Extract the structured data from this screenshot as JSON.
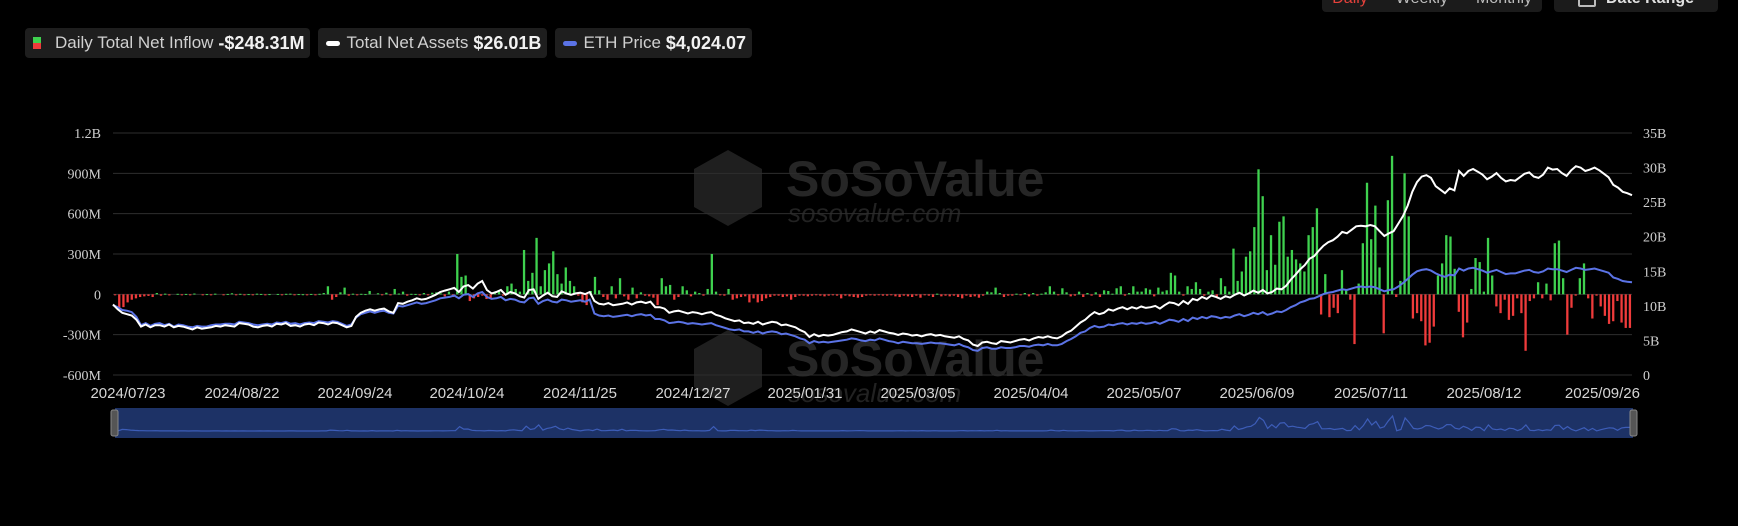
{
  "period_tabs": [
    {
      "label": "Daily",
      "active": true
    },
    {
      "label": "Weekly",
      "active": false
    },
    {
      "label": "Monthly",
      "active": false
    }
  ],
  "date_range_label": "Date Range",
  "legend": {
    "inflow": {
      "label": "Daily Total Net Inflow",
      "value": "-$248.31M"
    },
    "assets": {
      "label": "Total Net Assets",
      "value": "$26.01B"
    },
    "eth": {
      "label": "ETH Price",
      "value": "$4,024.07"
    }
  },
  "colors": {
    "positive": "#3fd14f",
    "negative": "#ef3b3b",
    "assets_line": "#ffffff",
    "eth_line": "#5b73e6",
    "grid": "#2e2e2e",
    "navigator": "#1d3266"
  },
  "watermark": {
    "brand": "SoSoValue",
    "site": "sosovalue.com"
  },
  "chart_data": {
    "type": "bar",
    "x_labels": [
      "2024/07/23",
      "2024/08/22",
      "2024/09/24",
      "2024/10/24",
      "2024/11/25",
      "2024/12/27",
      "2025/01/31",
      "2025/03/05",
      "2025/04/04",
      "2025/05/07",
      "2025/06/09",
      "2025/07/11",
      "2025/08/12",
      "2025/09/26"
    ],
    "y_left": {
      "ticks": [
        "1.2B",
        "900M",
        "600M",
        "300M",
        "0",
        "-300M",
        "-600M"
      ],
      "range": [
        -600,
        1200
      ],
      "unit": "M"
    },
    "y_right": {
      "ticks": [
        "35B",
        "30B",
        "25B",
        "20B",
        "15B",
        "10B",
        "5B",
        "0"
      ],
      "range": [
        0,
        35
      ],
      "unit": "B"
    },
    "series": [
      {
        "name": "Daily Total Net Inflow",
        "kind": "bar",
        "unit": "M",
        "values": [
          -5,
          -110,
          -95,
          -60,
          -40,
          -30,
          -20,
          -15,
          -12,
          -20,
          10,
          -10,
          5,
          -8,
          0,
          4,
          -5,
          3,
          -4,
          6,
          0,
          -3,
          2,
          -5,
          5,
          0,
          -6,
          3,
          8,
          -2,
          4,
          -3,
          2,
          -2,
          5,
          3,
          -4,
          2,
          0,
          3,
          -2,
          4,
          5,
          -3,
          2,
          1,
          -1,
          3,
          -2,
          4,
          10,
          60,
          -40,
          -20,
          15,
          50,
          -10,
          5,
          -3,
          4,
          2,
          25,
          0,
          8,
          -5,
          12,
          -2,
          40,
          6,
          20,
          -10,
          4,
          3,
          -6,
          10,
          -4,
          12,
          15,
          8,
          -15,
          20,
          -20,
          300,
          130,
          140,
          -50,
          -30,
          -20,
          -10,
          -35,
          -30,
          10,
          30,
          -10,
          60,
          80,
          40,
          20,
          330,
          100,
          160,
          420,
          60,
          180,
          230,
          320,
          150,
          80,
          200,
          100,
          60,
          -10,
          -60,
          -80,
          25,
          130,
          30,
          -20,
          -40,
          60,
          -30,
          120,
          -15,
          -40,
          50,
          -30,
          15,
          -10,
          -15,
          -25,
          -80,
          120,
          60,
          70,
          -40,
          -20,
          60,
          30,
          -15,
          20,
          10,
          -10,
          40,
          300,
          20,
          -5,
          -10,
          40,
          -40,
          -30,
          -20,
          -15,
          -60,
          -30,
          -60,
          -50,
          -30,
          -20,
          -10,
          -10,
          -20,
          -15,
          -40,
          -20,
          -10,
          -10,
          -15,
          -10,
          -5,
          -10,
          -15,
          -10,
          -5,
          -10,
          -30,
          -10,
          -15,
          -20,
          -25,
          -20,
          -10,
          -5,
          -10,
          -5,
          -10,
          -10,
          -5,
          -15,
          -20,
          -10,
          -15,
          -20,
          -10,
          -25,
          -5,
          -10,
          -20,
          5,
          -15,
          -10,
          -15,
          -10,
          -20,
          -30,
          -10,
          -20,
          -15,
          -25,
          -10,
          20,
          15,
          50,
          10,
          -20,
          -10,
          -10,
          5,
          -5,
          10,
          -15,
          10,
          -10,
          5,
          15,
          60,
          20,
          -5,
          45,
          15,
          -15,
          -10,
          20,
          -20,
          10,
          -10,
          15,
          -20,
          30,
          25,
          5,
          45,
          60,
          -10,
          10,
          60,
          20,
          20,
          45,
          35,
          -15,
          50,
          20,
          30,
          160,
          140,
          20,
          -10,
          60,
          40,
          90,
          40,
          -10,
          20,
          30,
          -20,
          120,
          60,
          20,
          340,
          100,
          170,
          280,
          320,
          500,
          930,
          730,
          180,
          440,
          220,
          540,
          580,
          280,
          330,
          260,
          230,
          170,
          440,
          500,
          640,
          -150,
          150,
          -170,
          -100,
          -140,
          180,
          30,
          -40,
          -370,
          80,
          380,
          830,
          410,
          660,
          200,
          -290,
          700,
          1030,
          -20,
          100,
          900,
          580,
          -180,
          -140,
          -200,
          -380,
          -360,
          -240,
          140,
          230,
          440,
          430,
          190,
          -130,
          -320,
          -210,
          40,
          270,
          240,
          20,
          420,
          140,
          -90,
          -140,
          -40,
          -190,
          -160,
          -30,
          -140,
          -420,
          -50,
          -30,
          90,
          -30,
          80,
          -45,
          380,
          400,
          120,
          -300,
          -100,
          -10,
          120,
          230,
          -30,
          -180,
          -10,
          -90,
          -160,
          -220,
          -200,
          -50,
          -210,
          -250,
          -250
        ]
      },
      {
        "name": "Total Net Assets",
        "kind": "line",
        "axis": "right",
        "unit": "B",
        "values": [
          10.2,
          9.5,
          9.0,
          8.8,
          8.6,
          8.0,
          7.0,
          7.3,
          6.9,
          7.2,
          7.2,
          7.0,
          7.3,
          6.9,
          7.1,
          7.0,
          6.8,
          6.6,
          6.9,
          6.7,
          6.8,
          6.9,
          7.1,
          7.0,
          7.2,
          7.1,
          7.0,
          7.5,
          7.4,
          7.3,
          7.0,
          6.9,
          7.1,
          7.2,
          7.0,
          7.4,
          7.3,
          7.5,
          7.1,
          7.2,
          7.0,
          7.3,
          7.4,
          7.2,
          7.6,
          7.5,
          7.3,
          7.6,
          7.5,
          7.2,
          6.9,
          7.1,
          8.4,
          9.0,
          9.3,
          9.5,
          9.3,
          9.5,
          9.6,
          9.2,
          9.0,
          10.4,
          10.3,
          10.6,
          10.8,
          11.1,
          10.9,
          11.0,
          11.3,
          11.6,
          12.0,
          12.2,
          12.4,
          12.6,
          12.0,
          12.8,
          13.0,
          12.5,
          13.2,
          13.6,
          12.3,
          11.8,
          12.0,
          12.3,
          11.6,
          12.0,
          11.8,
          11.4,
          11.2,
          12.3,
          12.4,
          11.0,
          11.5,
          11.9,
          11.4,
          11.3,
          12.1,
          11.8,
          11.6,
          11.8,
          11.9,
          11.7,
          12.0,
          10.7,
          10.3,
          10.2,
          10.4,
          10.1,
          10.2,
          10.3,
          10.5,
          10.2,
          10.5,
          10.6,
          10.4,
          10.6,
          9.8,
          9.8,
          9.6,
          9.0,
          9.2,
          9.3,
          9.1,
          8.9,
          9.1,
          9.0,
          8.8,
          9.0,
          9.1,
          8.7,
          8.5,
          8.2,
          8.0,
          7.8,
          7.9,
          7.5,
          7.6,
          7.4,
          7.7,
          7.3,
          7.5,
          7.7,
          7.6,
          7.2,
          7.3,
          7.1,
          6.9,
          6.5,
          6.2,
          5.5,
          5.9,
          5.6,
          5.8,
          5.7,
          5.8,
          6.0,
          6.2,
          6.3,
          6.6,
          6.4,
          6.2,
          6.0,
          6.3,
          6.1,
          6.5,
          6.3,
          6.1,
          6.0,
          5.8,
          6.0,
          5.9,
          5.7,
          5.8,
          5.6,
          5.8,
          5.9,
          5.7,
          5.8,
          5.6,
          5.5,
          5.4,
          5.6,
          5.2,
          5.0,
          4.4,
          4.2,
          4.7,
          4.8,
          4.6,
          4.5,
          4.9,
          4.8,
          4.7,
          4.9,
          5.1,
          5.2,
          5.0,
          5.3,
          5.5,
          5.4,
          5.6,
          5.4,
          5.3,
          5.6,
          6.1,
          6.4,
          7.0,
          7.6,
          8.0,
          8.6,
          9.1,
          8.8,
          9.0,
          9.5,
          9.3,
          9.6,
          9.8,
          9.5,
          9.8,
          9.6,
          9.9,
          9.7,
          9.8,
          10.0,
          9.6,
          10.1,
          10.5,
          10.4,
          10.1,
          10.7,
          10.3,
          11.0,
          10.8,
          11.3,
          11.0,
          11.5,
          11.3,
          11.0,
          11.4,
          11.2,
          11.6,
          11.9,
          11.5,
          11.8,
          12.2,
          11.9,
          12.3,
          11.8,
          12.0,
          12.5,
          12.4,
          12.9,
          13.8,
          14.5,
          15.3,
          15.9,
          16.8,
          17.2,
          18.0,
          18.7,
          19.2,
          19.5,
          20.0,
          20.7,
          20.5,
          21.0,
          21.5,
          21.6,
          21.5,
          21.7,
          21.5,
          20.8,
          20.1,
          20.5,
          20.8,
          21.9,
          23.0,
          24.5,
          26.5,
          27.9,
          28.7,
          28.9,
          28.5,
          27.3,
          26.8,
          26.3,
          27.0,
          26.7,
          29.5,
          28.8,
          29.5,
          29.8,
          29.4,
          29.0,
          28.3,
          28.7,
          29.2,
          28.5,
          28.0,
          28.2,
          28.1,
          28.6,
          29.1,
          29.3,
          28.7,
          28.5,
          29.0,
          30.0,
          29.7,
          29.8,
          29.2,
          28.8,
          29.6,
          30.2,
          30.0,
          29.5,
          29.7,
          30.0,
          29.6,
          29.1,
          28.6,
          27.5,
          27.1,
          26.5,
          26.3,
          26.01
        ]
      },
      {
        "name": "ETH Price",
        "kind": "line",
        "axis": "right",
        "values": [
          10.1,
          9.8,
          9.4,
          9.3,
          9.1,
          8.4,
          7.2,
          7.5,
          7.1,
          7.4,
          7.5,
          7.2,
          7.4,
          7.0,
          7.3,
          7.2,
          7.0,
          6.9,
          7.1,
          7.0,
          7.0,
          7.2,
          7.3,
          7.3,
          7.4,
          7.4,
          7.3,
          7.7,
          7.6,
          7.5,
          7.3,
          7.2,
          7.3,
          7.4,
          7.3,
          7.6,
          7.5,
          7.7,
          7.4,
          7.5,
          7.3,
          7.5,
          7.6,
          7.5,
          7.8,
          7.7,
          7.6,
          7.8,
          7.7,
          7.4,
          7.1,
          7.3,
          8.3,
          8.8,
          9.0,
          9.2,
          9.0,
          9.2,
          9.3,
          9.0,
          8.9,
          10.0,
          9.9,
          10.1,
          10.3,
          10.5,
          10.3,
          10.4,
          10.6,
          10.8,
          11.1,
          11.2,
          11.3,
          11.5,
          11.1,
          11.6,
          11.7,
          11.3,
          11.8,
          12.0,
          11.3,
          11.0,
          11.1,
          11.3,
          10.8,
          11.0,
          10.9,
          10.6,
          10.5,
          11.1,
          11.2,
          10.3,
          10.7,
          10.9,
          10.6,
          10.5,
          10.9,
          10.8,
          10.6,
          10.7,
          10.8,
          10.6,
          10.9,
          8.9,
          8.6,
          8.5,
          8.6,
          8.4,
          8.5,
          8.6,
          8.7,
          8.5,
          8.7,
          8.8,
          8.6,
          8.7,
          8.1,
          8.1,
          7.9,
          7.5,
          7.6,
          7.7,
          7.6,
          7.4,
          7.5,
          7.4,
          7.3,
          7.4,
          7.5,
          7.2,
          7.0,
          6.8,
          6.6,
          6.5,
          6.6,
          6.3,
          6.3,
          6.1,
          6.3,
          6.0,
          6.2,
          6.3,
          6.2,
          5.9,
          6.0,
          5.8,
          5.6,
          5.3,
          5.1,
          4.6,
          4.9,
          4.7,
          4.8,
          4.7,
          4.8,
          4.9,
          5.0,
          5.1,
          5.3,
          5.2,
          5.0,
          4.9,
          5.1,
          5.0,
          5.3,
          5.1,
          4.9,
          4.8,
          4.6,
          4.8,
          4.7,
          4.6,
          4.6,
          4.5,
          4.6,
          4.7,
          4.6,
          4.6,
          4.5,
          4.4,
          4.3,
          4.5,
          4.2,
          4.0,
          3.6,
          3.5,
          3.9,
          4.0,
          3.8,
          3.8,
          4.0,
          3.9,
          3.9,
          4.0,
          4.2,
          4.2,
          4.1,
          4.3,
          4.4,
          4.3,
          4.5,
          4.3,
          4.3,
          4.5,
          4.9,
          5.2,
          5.6,
          6.1,
          6.3,
          6.8,
          7.1,
          6.9,
          7.0,
          7.3,
          7.2,
          7.4,
          7.5,
          7.3,
          7.5,
          7.4,
          7.6,
          7.4,
          7.5,
          7.7,
          7.4,
          7.7,
          8.0,
          7.9,
          7.7,
          8.1,
          7.8,
          8.3,
          8.1,
          8.4,
          8.2,
          8.5,
          8.4,
          8.2,
          8.4,
          8.3,
          8.6,
          8.8,
          8.5,
          8.7,
          9.0,
          8.8,
          9.1,
          8.7,
          8.9,
          9.2,
          9.1,
          9.4,
          9.8,
          10.1,
          10.5,
          10.7,
          11.0,
          11.1,
          11.4,
          11.7,
          11.9,
          12.0,
          12.2,
          12.4,
          12.3,
          12.5,
          12.7,
          12.8,
          12.7,
          12.8,
          12.7,
          12.4,
          12.1,
          12.3,
          12.4,
          12.8,
          13.3,
          13.9,
          14.5,
          15.0,
          15.2,
          15.3,
          15.1,
          14.7,
          14.4,
          14.2,
          14.5,
          14.4,
          15.4,
          15.1,
          15.4,
          15.5,
          15.3,
          15.1,
          14.8,
          15.0,
          15.2,
          14.9,
          14.6,
          14.7,
          14.7,
          14.9,
          15.1,
          15.2,
          14.9,
          14.8,
          15.0,
          15.4,
          15.3,
          15.3,
          15.1,
          14.9,
          15.2,
          15.5,
          15.4,
          15.2,
          15.3,
          15.4,
          15.2,
          15.0,
          14.8,
          14.1,
          13.9,
          13.6,
          13.5,
          13.4
        ]
      }
    ]
  }
}
